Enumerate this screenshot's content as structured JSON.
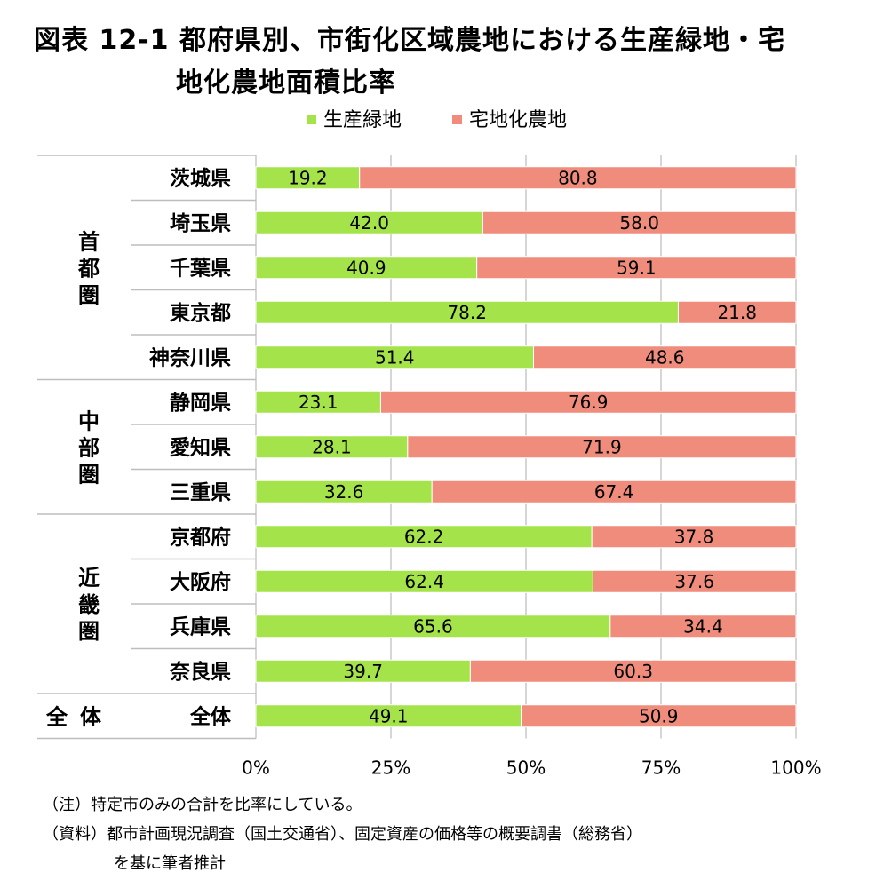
{
  "title": {
    "line1": "図表 12-1 都府県別、市街化区域農地における生産緑地・宅",
    "line2": "地化農地面積比率"
  },
  "chart_data": {
    "type": "bar",
    "orientation": "horizontal",
    "stacked": true,
    "percent": true,
    "categories": [
      "茨城県",
      "埼玉県",
      "千葉県",
      "東京都",
      "神奈川県",
      "静岡県",
      "愛知県",
      "三重県",
      "京都府",
      "大阪府",
      "兵庫県",
      "奈良県",
      "全体"
    ],
    "groups": [
      {
        "name": "首都圏",
        "count": 5
      },
      {
        "name": "中部圏",
        "count": 3
      },
      {
        "name": "近畿圏",
        "count": 4
      },
      {
        "name": "全 体",
        "count": 1
      }
    ],
    "series": [
      {
        "name": "生産緑地",
        "color": "#a5e34b",
        "values": [
          19.2,
          42.0,
          40.9,
          78.2,
          51.4,
          23.1,
          28.1,
          32.6,
          62.2,
          62.4,
          65.6,
          39.7,
          49.1
        ],
        "labels": [
          "19.2",
          "42.0",
          "40.9",
          "78.2",
          "51.4",
          "23.1",
          "28.1",
          "32.6",
          "62.2",
          "62.4",
          "65.6",
          "39.7",
          "49.1"
        ]
      },
      {
        "name": "宅地化農地",
        "color": "#f08c7c",
        "values": [
          80.8,
          58.0,
          59.1,
          21.8,
          48.6,
          76.9,
          71.9,
          67.4,
          37.8,
          37.6,
          34.4,
          60.3,
          50.9
        ],
        "labels": [
          "80.8",
          "58.0",
          "59.1",
          "21.8",
          "48.6",
          "76.9",
          "71.9",
          "67.4",
          "37.8",
          "37.6",
          "34.4",
          "60.3",
          "50.9"
        ]
      }
    ],
    "xlim": [
      0,
      100
    ],
    "xticks": [
      "0%",
      "25%",
      "50%",
      "75%",
      "100%"
    ],
    "grid": true,
    "legend_position": "top-center"
  },
  "notes": {
    "note1": "（注）特定市のみの合計を比率にしている。",
    "source_line1": "（資料）都市計画現況調査（国土交通省）、固定資産の価格等の概要調書（総務省）",
    "source_line2": "を基に筆者推計"
  }
}
